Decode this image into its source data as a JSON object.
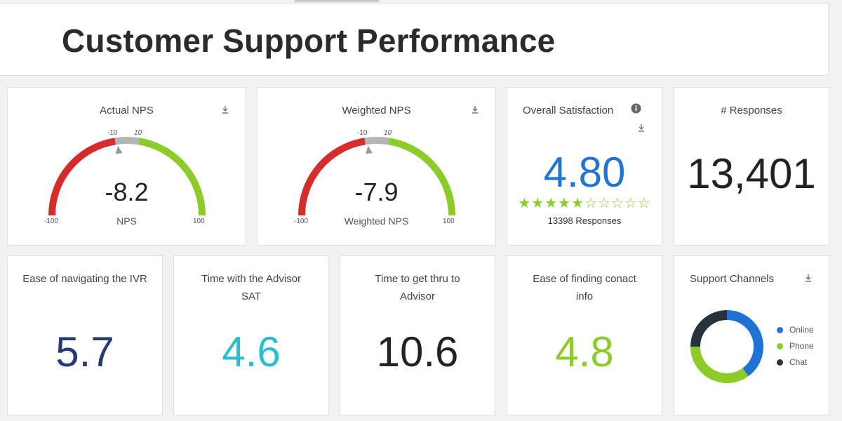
{
  "page": {
    "title": "Customer Support Performance"
  },
  "colors": {
    "red": "#d62c2c",
    "green": "#8ccb2a",
    "grey": "#b5b5b5",
    "blue": "#1f73d3",
    "navy": "#283a73",
    "cyan": "#2bbed3",
    "dark": "#28323c"
  },
  "cards": {
    "actual_nps": {
      "title": "Actual NPS",
      "value": "-8.2",
      "caption": "NPS",
      "min_label": "-100",
      "max_label": "100",
      "band_low": "-10",
      "band_high": "10",
      "value_num": -8.2,
      "min": -100,
      "max": 100,
      "band": [
        -10,
        10
      ],
      "icon": "download-icon"
    },
    "weighted_nps": {
      "title": "Weighted NPS",
      "value": "-7.9",
      "caption": "Weighted NPS",
      "min_label": "-100",
      "max_label": "100",
      "band_low": "-10",
      "band_high": "10",
      "value_num": -7.9,
      "min": -100,
      "max": 100,
      "band": [
        -10,
        10
      ],
      "icon": "download-icon"
    },
    "overall_satisfaction": {
      "title": "Overall Satisfaction",
      "value": "4.80",
      "responses": "13398 Responses",
      "rating": 5,
      "rating_max": 10,
      "icon": "info-icon"
    },
    "responses": {
      "title": "# Responses",
      "value": "13,401"
    },
    "ivr": {
      "title": "Ease of navigating the IVR",
      "value": "5.7"
    },
    "advisor_time": {
      "title": "Time with the Advisor SAT",
      "value": "4.6"
    },
    "time_to_advisor": {
      "title": "Time to get thru to Advisor",
      "value": "10.6"
    },
    "contact_info": {
      "title": "Ease of finding conact info",
      "value": "4.8"
    },
    "support_channels": {
      "title": "Support Channels",
      "chart_data": {
        "type": "pie",
        "categories": [
          "Online",
          "Phone",
          "Chat"
        ],
        "values": [
          40,
          35,
          25
        ],
        "colors": [
          "#1f73d3",
          "#8ccb2a",
          "#28323c"
        ],
        "legend": "right"
      }
    }
  }
}
